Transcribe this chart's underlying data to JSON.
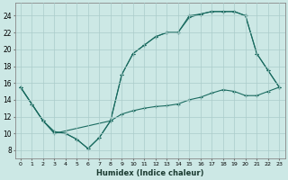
{
  "xlabel": "Humidex (Indice chaleur)",
  "background_color": "#cce8e5",
  "grid_color": "#aaccca",
  "line_color": "#1a6b60",
  "xlim": [
    -0.5,
    23.5
  ],
  "ylim": [
    7.0,
    25.5
  ],
  "xticks": [
    0,
    1,
    2,
    3,
    4,
    5,
    6,
    7,
    8,
    9,
    10,
    11,
    12,
    13,
    14,
    15,
    16,
    17,
    18,
    19,
    20,
    21,
    22,
    23
  ],
  "yticks": [
    8,
    10,
    12,
    14,
    16,
    18,
    20,
    22,
    24
  ],
  "line1_x": [
    0,
    1,
    2,
    3,
    4,
    5,
    6,
    7,
    8,
    9,
    10,
    11,
    12,
    13,
    14,
    15,
    16,
    17,
    18,
    19,
    20,
    21,
    22,
    23
  ],
  "line1_y": [
    15.5,
    13.5,
    11.5,
    10.2,
    10.0,
    9.3,
    8.2,
    9.5,
    11.5,
    12.3,
    12.7,
    13.0,
    13.2,
    13.3,
    13.5,
    14.0,
    14.3,
    14.8,
    15.2,
    15.0,
    14.5,
    14.5,
    15.0,
    15.5
  ],
  "line2_x": [
    0,
    2,
    3,
    8,
    9,
    10,
    11,
    12,
    13,
    14,
    15,
    16,
    17,
    18,
    19,
    20,
    21,
    22,
    23
  ],
  "line2_y": [
    15.5,
    11.5,
    10.0,
    11.5,
    17.0,
    19.5,
    20.5,
    21.5,
    22.0,
    22.0,
    24.0,
    24.2,
    24.5,
    24.5,
    24.5,
    24.0,
    19.5,
    17.5,
    15.5
  ],
  "line3_x": [
    0,
    1,
    2,
    3,
    4,
    5,
    6,
    7,
    8,
    9,
    10,
    11,
    12,
    13,
    14,
    15,
    16,
    17,
    18,
    19,
    20,
    21,
    22,
    23
  ],
  "line3_y": [
    15.5,
    13.5,
    11.5,
    10.2,
    10.0,
    9.3,
    8.2,
    9.5,
    11.5,
    17.0,
    19.5,
    20.5,
    21.5,
    22.0,
    22.0,
    23.8,
    24.2,
    24.5,
    24.5,
    24.5,
    24.0,
    19.5,
    17.5,
    15.5
  ]
}
